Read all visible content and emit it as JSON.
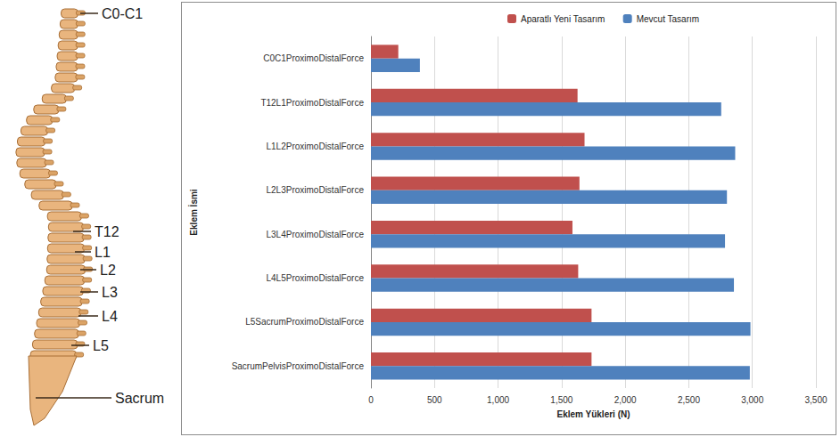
{
  "chart_data": {
    "type": "bar",
    "orientation": "horizontal",
    "categories": [
      "C0C1ProximoDistalForce",
      "T12L1ProximoDistalForce",
      "L1L2ProximoDistalForce",
      "L2L3ProximoDistalForce",
      "L3L4ProximoDistalForce",
      "L4L5ProximoDistalForce",
      "L5SacrumProximoDistalForce",
      "SacrumPelvisProximoDistalForce"
    ],
    "series": [
      {
        "name": "Aparatlı Yeni Tasarım",
        "color": "#c0504d",
        "values": [
          215,
          1625,
          1680,
          1640,
          1585,
          1630,
          1735,
          1735
        ]
      },
      {
        "name": "Mevcut Tasarım",
        "color": "#4f81bd",
        "values": [
          385,
          2755,
          2865,
          2800,
          2785,
          2855,
          2985,
          2980
        ]
      }
    ],
    "x_label": "Eklem Yükleri (N)",
    "y_label": "Eklem İsmi",
    "xlim": [
      0,
      3500
    ],
    "xticks": [
      0,
      500,
      {
        "value": 1000,
        "label": "1,000"
      },
      {
        "value": 1500,
        "label": "1,500"
      },
      {
        "value": 2000,
        "label": "2,000"
      },
      {
        "value": 2500,
        "label": "2,500"
      },
      {
        "value": 3000,
        "label": "3,000"
      },
      {
        "value": 3500,
        "label": "3,500"
      }
    ],
    "grid": true,
    "legend": "top"
  },
  "illustration": {
    "labels": [
      "C0-C1",
      "T12",
      "L1",
      "L2",
      "L3",
      "L4",
      "L5",
      "Sacrum"
    ]
  }
}
